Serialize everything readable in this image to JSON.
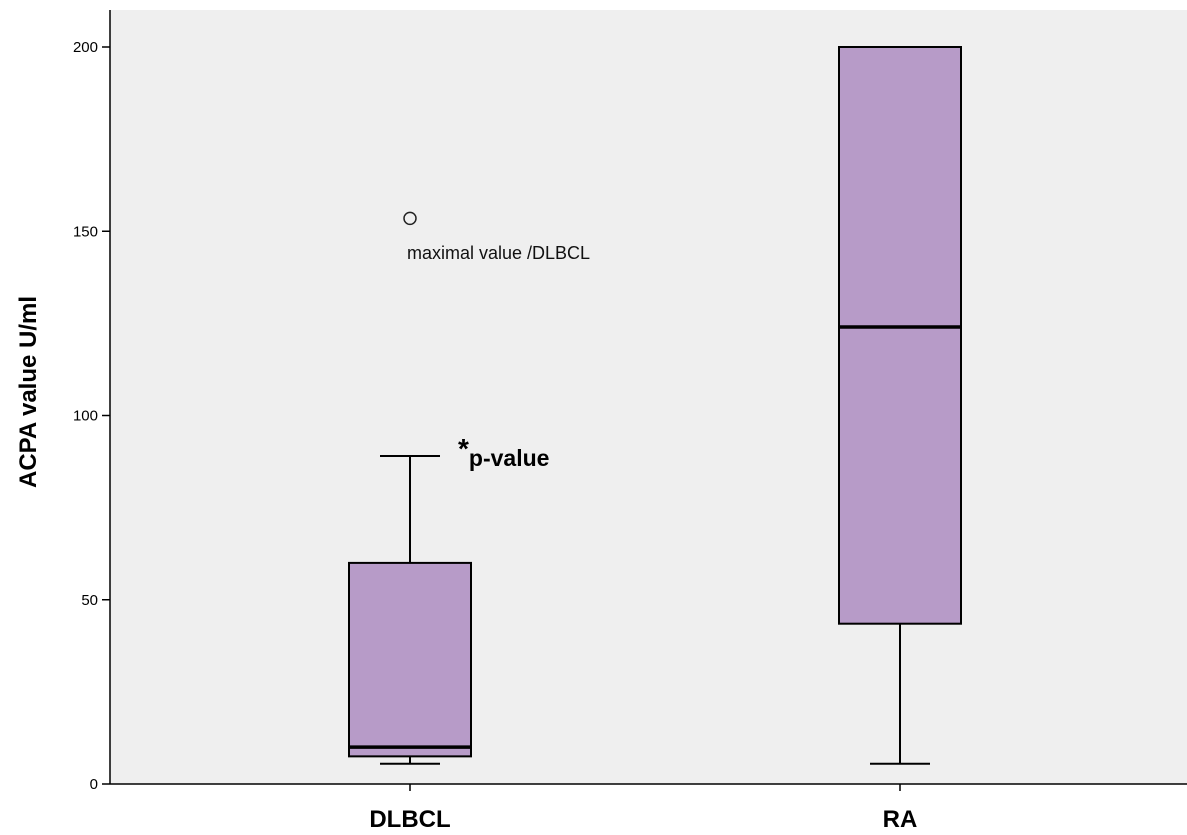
{
  "chart_data": {
    "type": "box",
    "ylabel": "ACPA value U/ml",
    "ylim": [
      0,
      210
    ],
    "yticks": [
      0,
      50,
      100,
      150,
      200
    ],
    "tick_labels": [
      "0",
      "50",
      "100",
      "150",
      "200"
    ],
    "categories": [
      "DLBCL",
      "RA"
    ],
    "boxes": [
      {
        "category": "DLBCL",
        "whisker_low": 5.5,
        "q1": 7.5,
        "median": 10,
        "q3": 60,
        "whisker_high": 89,
        "outliers": [
          153.5
        ]
      },
      {
        "category": "RA",
        "whisker_low": 5.5,
        "q1": 43.5,
        "median": 124,
        "q3": 200,
        "whisker_high": 200,
        "outliers": []
      }
    ],
    "annotations": {
      "outlier_note": "maximal value /DLBCL",
      "pvalue_star": "*",
      "pvalue_text": "p-value"
    },
    "colors": {
      "plot_background": "#efefef",
      "box_fill": "#b79bc8",
      "stroke": "#000000"
    },
    "grid": false,
    "legend": "none"
  }
}
